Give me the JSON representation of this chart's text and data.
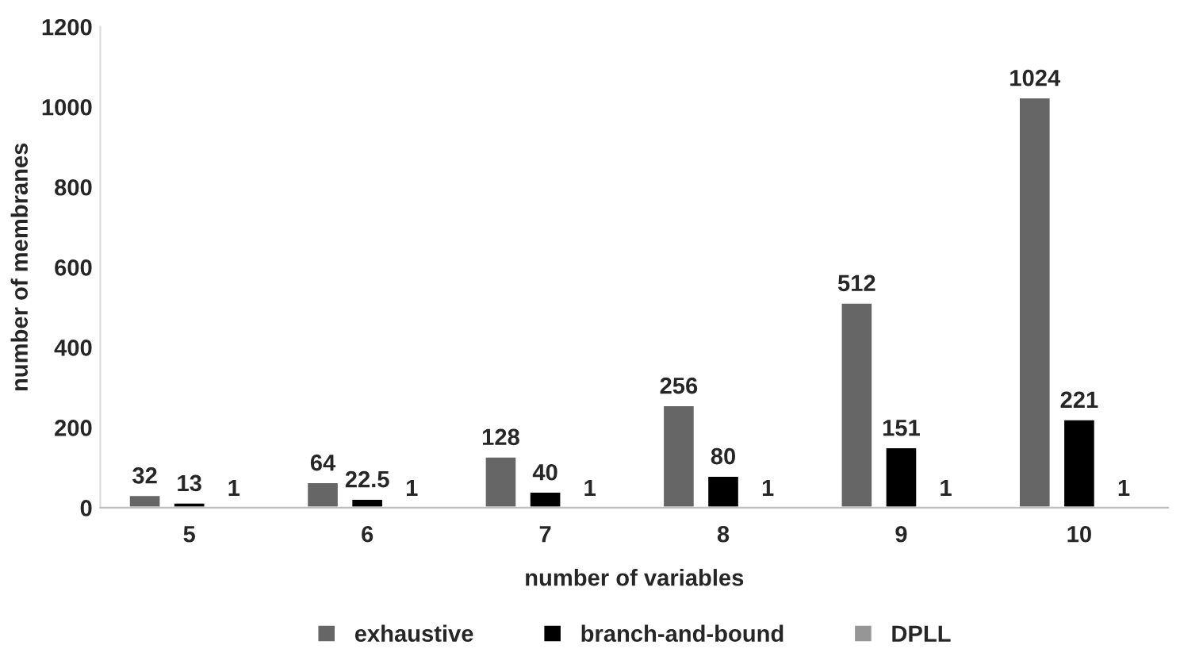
{
  "chart_data": {
    "type": "bar",
    "xlabel": "number of variables",
    "ylabel": "number of membranes",
    "categories": [
      "5",
      "6",
      "7",
      "8",
      "9",
      "10"
    ],
    "series": [
      {
        "name": "exhaustive",
        "color": "#666666",
        "values": [
          32,
          64,
          128,
          256,
          512,
          1024
        ]
      },
      {
        "name": "branch-and-bound",
        "color": "#000000",
        "values": [
          13,
          22.5,
          40,
          80,
          151,
          221
        ]
      },
      {
        "name": "DPLL",
        "color": "#969696",
        "values": [
          1,
          1,
          1,
          1,
          1,
          1
        ]
      }
    ],
    "ylim": [
      0,
      1200
    ],
    "yticks": [
      0,
      200,
      400,
      600,
      800,
      1000,
      1200
    ],
    "data_labels": true,
    "grid": false,
    "legend": "bottom"
  }
}
